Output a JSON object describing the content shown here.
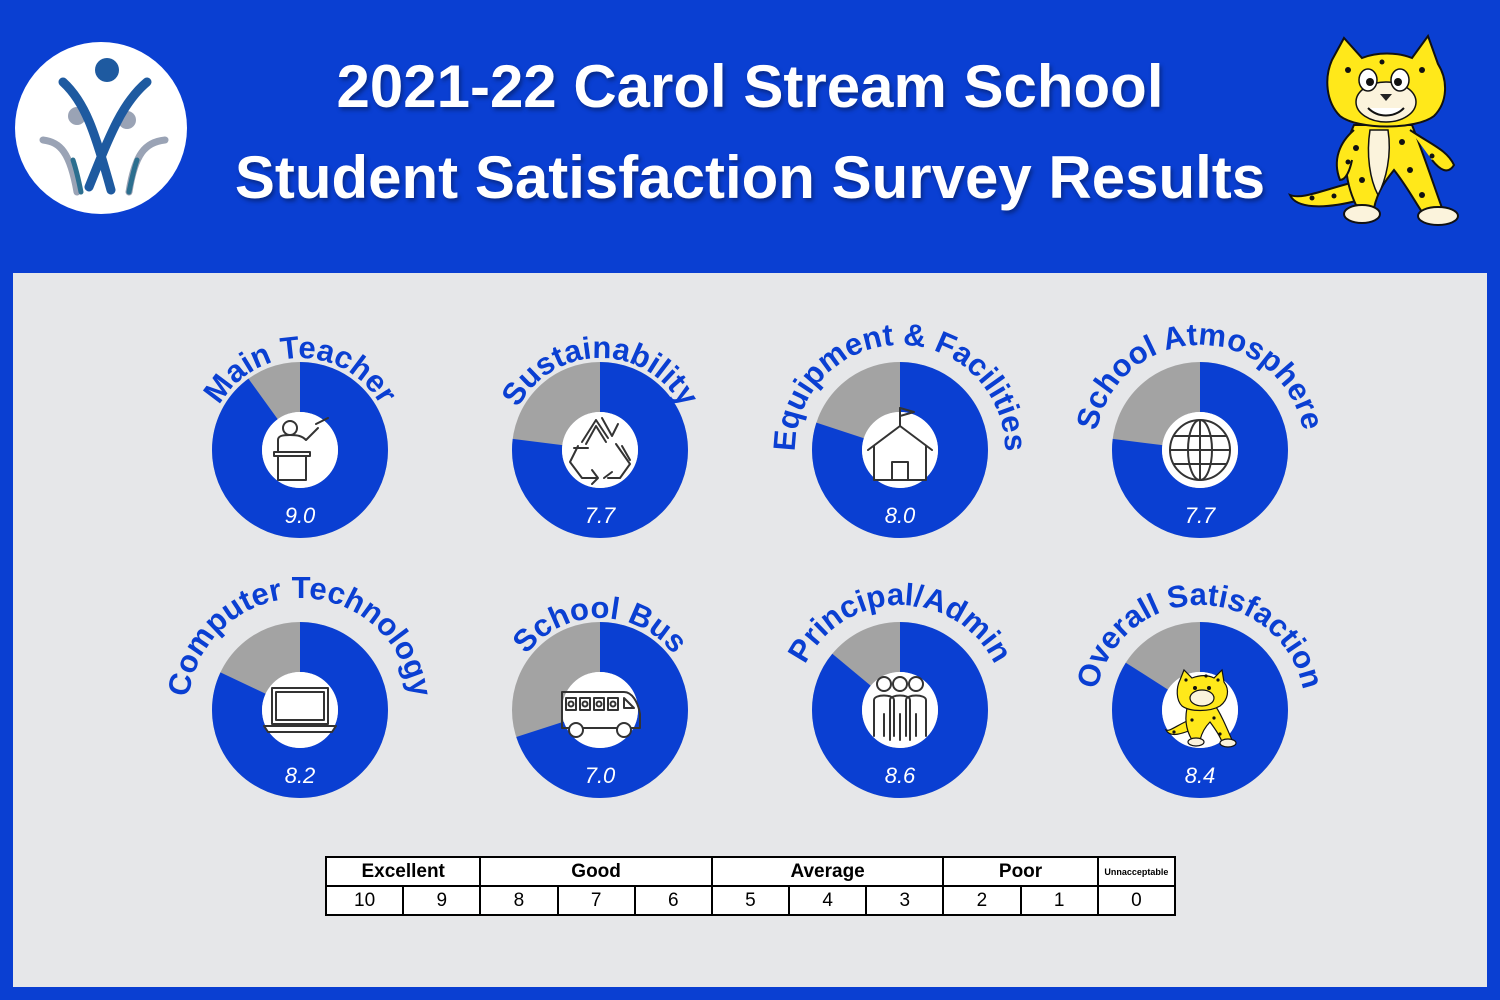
{
  "header": {
    "title_line1": "2021-22 Carol Stream School",
    "title_line2": "Student Satisfaction Survey Results"
  },
  "colors": {
    "header_bg": "#0a3fd2",
    "panel_bg": "#e6e7e9",
    "ring_fill": "#0a3fd2",
    "ring_rest": "#a3a3a3",
    "label": "#0a3fd2",
    "value_text": "#ffffff"
  },
  "chart_data": {
    "type": "donut",
    "max": 10,
    "categories": [
      "Main Teacher",
      "Sustainability",
      "Equipment & Facilities",
      "School Atmosphere",
      "Computer Technology",
      "School Bus",
      "Principal/Admin",
      "Overall Satisfaction"
    ],
    "values": [
      9.0,
      7.7,
      8.0,
      7.7,
      8.2,
      7.0,
      8.6,
      8.4
    ],
    "value_labels": [
      "9.0",
      "7.7",
      "8.0",
      "7.7",
      "8.2",
      "7.0",
      "8.6",
      "8.4"
    ],
    "icons": [
      "teacher-podium-icon",
      "recycle-icon",
      "schoolhouse-icon",
      "globe-icon",
      "laptop-icon",
      "school-bus-icon",
      "people-group-icon",
      "leopard-mascot-icon"
    ]
  },
  "rating_scale": {
    "groups": [
      {
        "label": "Excellent",
        "span": 2
      },
      {
        "label": "Good",
        "span": 3
      },
      {
        "label": "Average",
        "span": 3
      },
      {
        "label": "Poor",
        "span": 2
      },
      {
        "label": "Unnacceptable",
        "span": 1
      }
    ],
    "values": [
      "10",
      "9",
      "8",
      "7",
      "6",
      "5",
      "4",
      "3",
      "2",
      "1",
      "0"
    ]
  }
}
